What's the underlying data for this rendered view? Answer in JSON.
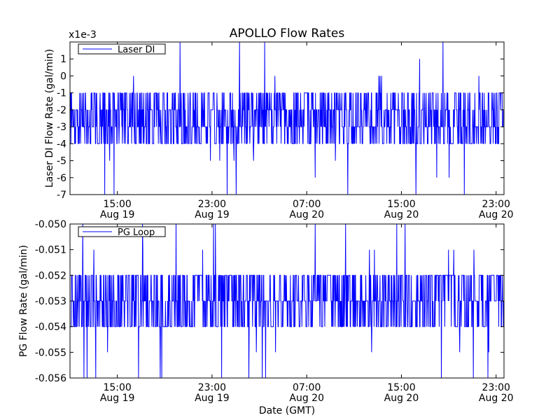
{
  "figure": {
    "title": "APOLLO Flow Rates",
    "xlabel": "Date (GMT)",
    "line_color": "#0000ff"
  },
  "chart_data": [
    {
      "type": "line",
      "ylabel": "Laser DI Flow Rate (gal/min)",
      "scale_label": "x1e-3",
      "legend": {
        "label": "Laser DI",
        "position": "top-left"
      },
      "ylim": [
        -7,
        2
      ],
      "yticks": [
        "-7",
        "-6",
        "-5",
        "-4",
        "-3",
        "-2",
        "-1",
        "0",
        "1"
      ],
      "xlim": [
        "2012-08-19 11:00",
        "2012-08-20 23:40"
      ],
      "xticks": [
        {
          "time": "15:00",
          "date": "Aug 19"
        },
        {
          "time": "23:00",
          "date": "Aug 19"
        },
        {
          "time": "07:00",
          "date": "Aug 20"
        },
        {
          "time": "15:00",
          "date": "Aug 20"
        },
        {
          "time": "23:00",
          "date": "Aug 20"
        }
      ],
      "series": [
        {
          "values_summary": "noisy signal switching mainly between -4 and -1 (x1e-3), centered near -2.5",
          "base_range": [
            -4,
            -1
          ],
          "occasional_low": [
            -5,
            -6,
            -7
          ],
          "occasional_high": [
            0,
            1,
            2
          ]
        }
      ]
    },
    {
      "type": "line",
      "ylabel": "PG Flow Rate (gal/min)",
      "legend": {
        "label": "PG Loop",
        "position": "top-left"
      },
      "ylim": [
        -0.056,
        -0.05
      ],
      "yticks": [
        "-0.056",
        "-0.055",
        "-0.054",
        "-0.053",
        "-0.052",
        "-0.051",
        "-0.050"
      ],
      "xlim": [
        "2012-08-19 11:00",
        "2012-08-20 23:40"
      ],
      "xticks": [
        {
          "time": "15:00",
          "date": "Aug 19"
        },
        {
          "time": "23:00",
          "date": "Aug 19"
        },
        {
          "time": "07:00",
          "date": "Aug 20"
        },
        {
          "time": "15:00",
          "date": "Aug 20"
        },
        {
          "time": "23:00",
          "date": "Aug 20"
        }
      ],
      "series": [
        {
          "values_summary": "noisy signal switching mainly between -0.054 and -0.052, centered near -0.053",
          "base_range": [
            -0.054,
            -0.052
          ],
          "occasional_low": [
            -0.055,
            -0.056
          ],
          "occasional_high": [
            -0.051,
            -0.05
          ]
        }
      ]
    }
  ]
}
